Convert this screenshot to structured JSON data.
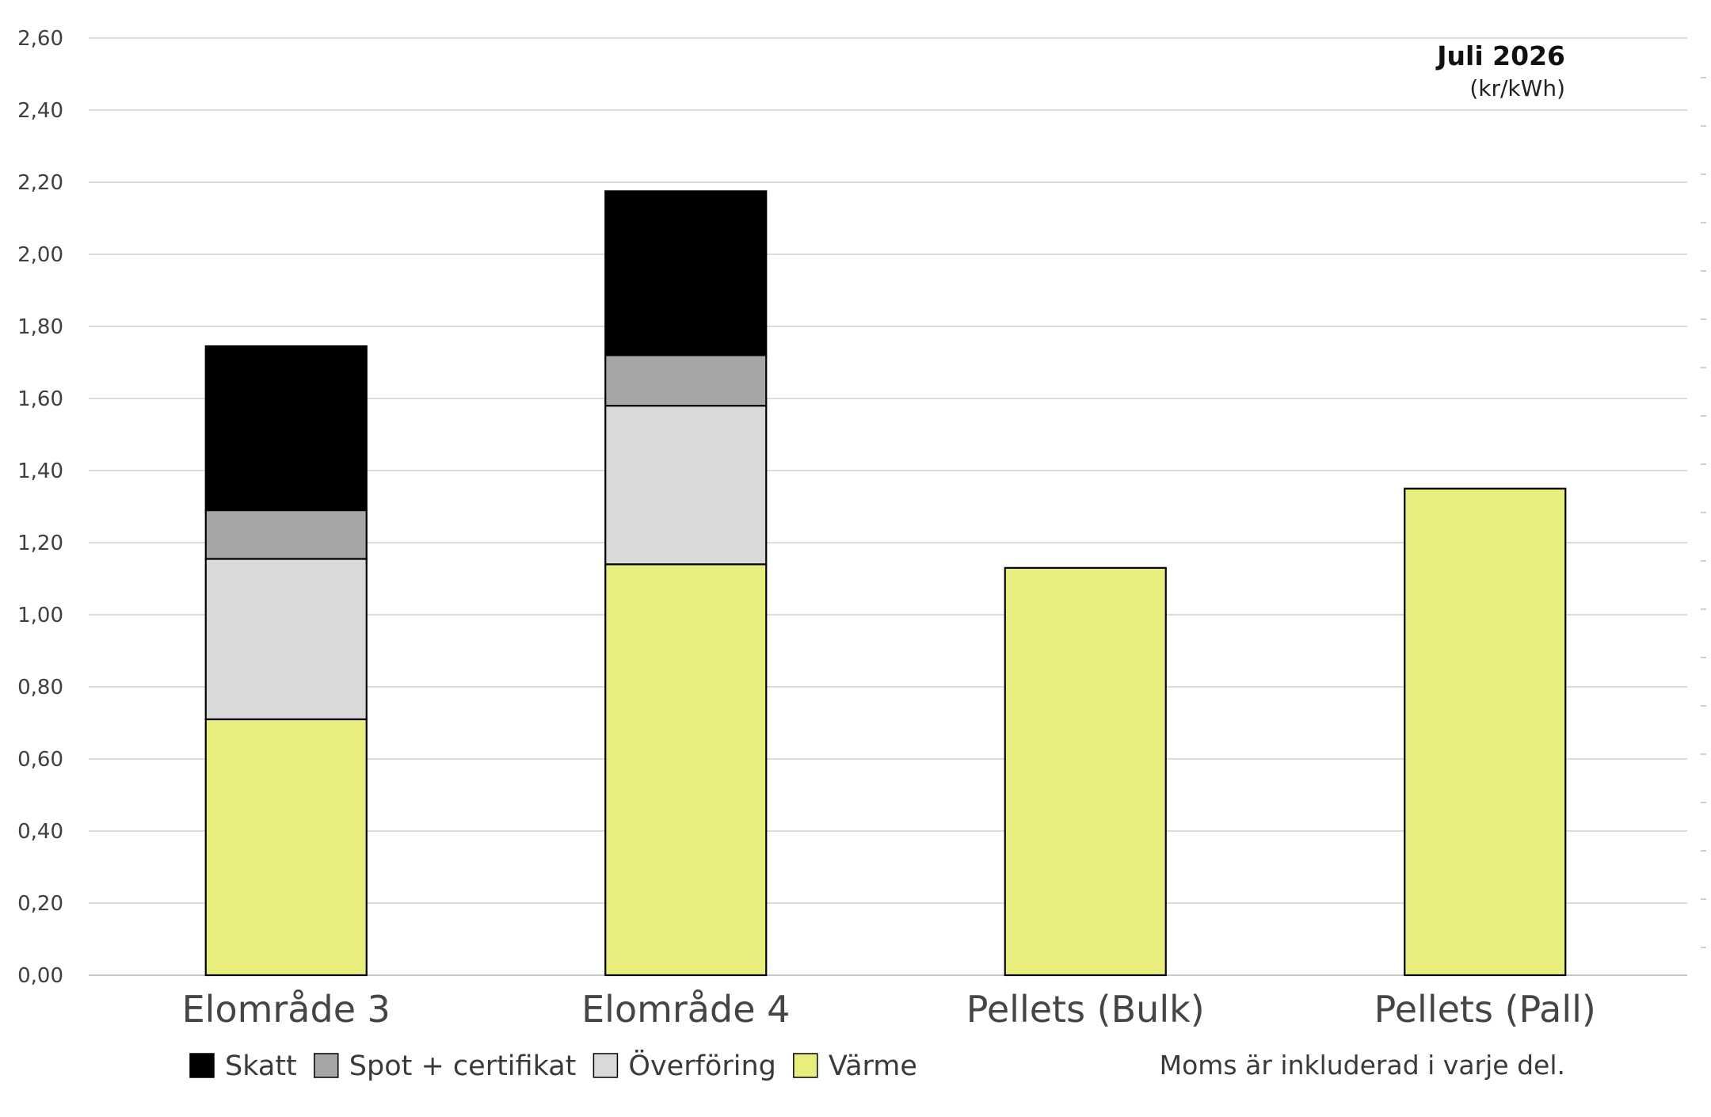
{
  "chart_data": {
    "type": "bar",
    "stacked": true,
    "title": "Juli 2026",
    "subtitle": "(kr/kWh)",
    "note": "Moms är inkluderad i varje del.",
    "categories": [
      "Elområde 3",
      "Elområde 4",
      "Pellets (Bulk)",
      "Pellets (Pall)"
    ],
    "series": [
      {
        "name": "Värme",
        "color": "#e9ed7d",
        "values": [
          0.71,
          1.14,
          1.13,
          1.35
        ]
      },
      {
        "name": "Överföring",
        "color": "#d9d9d9",
        "values": [
          0.445,
          0.44,
          0,
          0
        ]
      },
      {
        "name": "Spot + certifikat",
        "color": "#a6a6a6",
        "values": [
          0.135,
          0.14,
          0,
          0
        ]
      },
      {
        "name": "Skatt",
        "color": "#000000",
        "values": [
          0.455,
          0.455,
          0,
          0
        ]
      }
    ],
    "legend_order": [
      "Skatt",
      "Spot + certifikat",
      "Överföring",
      "Värme"
    ],
    "ylim": [
      0,
      2.6
    ],
    "yticks": [
      "0,00",
      "0,20",
      "0,40",
      "0,60",
      "0,80",
      "1,00",
      "1,20",
      "1,40",
      "1,60",
      "1,80",
      "2,00",
      "2,20",
      "2,40",
      "2,60"
    ],
    "grid": true,
    "legend_position": "bottom-left"
  }
}
